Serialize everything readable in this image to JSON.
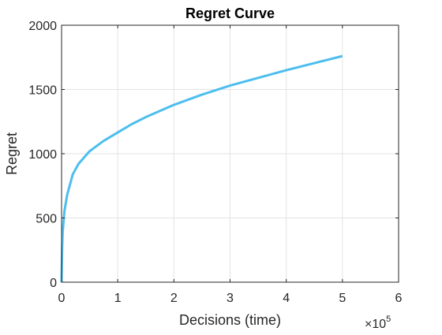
{
  "chart_data": {
    "type": "line",
    "title": "Regret Curve",
    "xlabel": "Decisions (time)",
    "ylabel": "Regret",
    "xlim": [
      0,
      6
    ],
    "ylim": [
      0,
      2000
    ],
    "x_ticks": [
      "0",
      "1",
      "2",
      "3",
      "4",
      "5",
      "6"
    ],
    "y_ticks": [
      "0",
      "500",
      "1000",
      "1500",
      "2000"
    ],
    "x_exponent": {
      "base": "×10",
      "power": "5"
    },
    "grid": true,
    "line_color": "#4DBEEE",
    "series": [
      {
        "x": [
          0,
          0.01,
          0.02,
          0.05,
          0.1,
          0.2,
          0.3,
          0.5,
          0.75,
          1.0,
          1.25,
          1.5,
          2.0,
          2.5,
          3.0,
          3.5,
          4.0,
          4.5,
          5.0
        ],
        "values": [
          0,
          260,
          390,
          550,
          680,
          840,
          920,
          1020,
          1100,
          1165,
          1230,
          1285,
          1380,
          1460,
          1530,
          1590,
          1650,
          1705,
          1760
        ]
      }
    ]
  }
}
